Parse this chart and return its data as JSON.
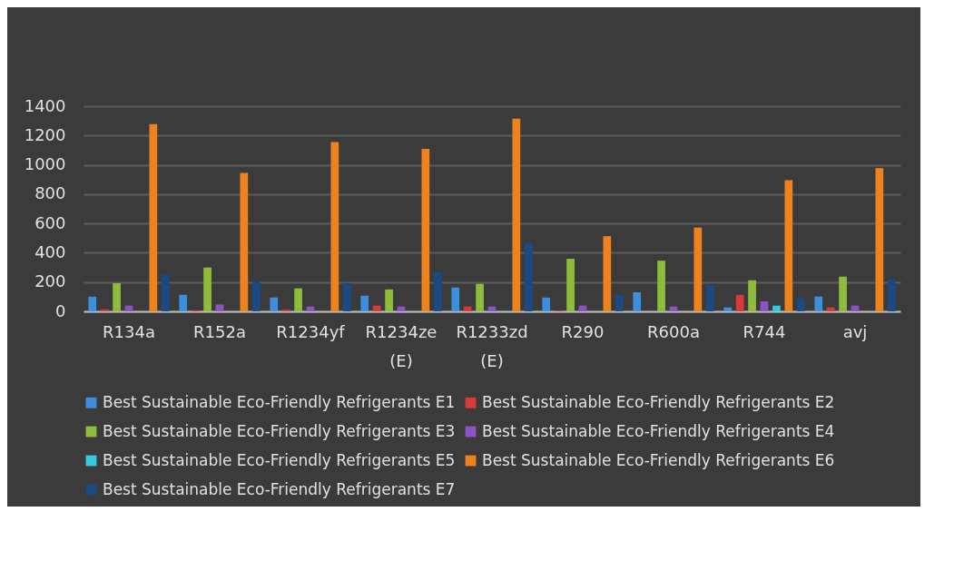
{
  "chart_data": {
    "type": "bar",
    "categories": [
      "R134a",
      "R152a",
      "R1234yf",
      "R1234ze (E)",
      "R1233zd (E)",
      "R290",
      "R600a",
      "R744",
      "avj"
    ],
    "series": [
      {
        "name": "Best Sustainable Eco-Friendly Refrigerants E1",
        "color": "#3e8ede",
        "values": [
          100,
          113,
          95,
          107,
          163,
          95,
          130,
          27,
          101
        ]
      },
      {
        "name": "Best Sustainable Eco-Friendly Refrigerants E2",
        "color": "#d83a3a",
        "values": [
          14,
          8,
          12,
          39,
          33,
          6,
          0,
          113,
          27
        ]
      },
      {
        "name": "Best Sustainable Eco-Friendly Refrigerants E3",
        "color": "#8fbb3a",
        "values": [
          192,
          299,
          157,
          150,
          188,
          359,
          346,
          212,
          237
        ]
      },
      {
        "name": "Best Sustainable Eco-Friendly Refrigerants E4",
        "color": "#8a55c2",
        "values": [
          39,
          47,
          33,
          33,
          33,
          39,
          33,
          68,
          39
        ]
      },
      {
        "name": "Best Sustainable Eco-Friendly Refrigerants E5",
        "color": "#36c8dd",
        "values": [
          0,
          0,
          0,
          0,
          0,
          0,
          0,
          39,
          0
        ]
      },
      {
        "name": "Best Sustainable Eco-Friendly Refrigerants E6",
        "color": "#f0821e",
        "values": [
          1278,
          944,
          1155,
          1109,
          1315,
          513,
          571,
          895,
          977
        ]
      },
      {
        "name": "Best Sustainable Eco-Friendly Refrigerants E7",
        "color": "#1b4a82",
        "values": [
          250,
          206,
          194,
          268,
          464,
          113,
          179,
          89,
          219
        ]
      }
    ],
    "ylim": [
      0,
      1400
    ],
    "yticks": [
      0,
      200,
      400,
      600,
      800,
      1000,
      1200,
      1400
    ],
    "grid": "y",
    "legend": "bottom"
  }
}
